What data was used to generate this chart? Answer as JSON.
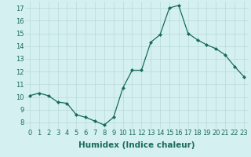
{
  "x": [
    0,
    1,
    2,
    3,
    4,
    5,
    6,
    7,
    8,
    9,
    10,
    11,
    12,
    13,
    14,
    15,
    16,
    17,
    18,
    19,
    20,
    21,
    22,
    23
  ],
  "y": [
    10.1,
    10.3,
    10.1,
    9.6,
    9.5,
    8.6,
    8.4,
    8.1,
    7.8,
    8.4,
    10.7,
    12.1,
    12.1,
    14.3,
    14.9,
    17.0,
    17.2,
    15.0,
    14.5,
    14.1,
    13.8,
    13.3,
    12.4,
    11.6
  ],
  "line_color": "#1a6b5a",
  "marker": "D",
  "marker_size": 2,
  "bg_color": "#d4f0f0",
  "grid_color": "#b8dada",
  "xlabel": "Humidex (Indice chaleur)",
  "ylim": [
    7.5,
    17.5
  ],
  "xlim": [
    -0.5,
    23.5
  ],
  "yticks": [
    8,
    9,
    10,
    11,
    12,
    13,
    14,
    15,
    16,
    17
  ],
  "xticks": [
    0,
    1,
    2,
    3,
    4,
    5,
    6,
    7,
    8,
    9,
    10,
    11,
    12,
    13,
    14,
    15,
    16,
    17,
    18,
    19,
    20,
    21,
    22,
    23
  ],
  "tick_fontsize": 6,
  "xlabel_fontsize": 7.5
}
